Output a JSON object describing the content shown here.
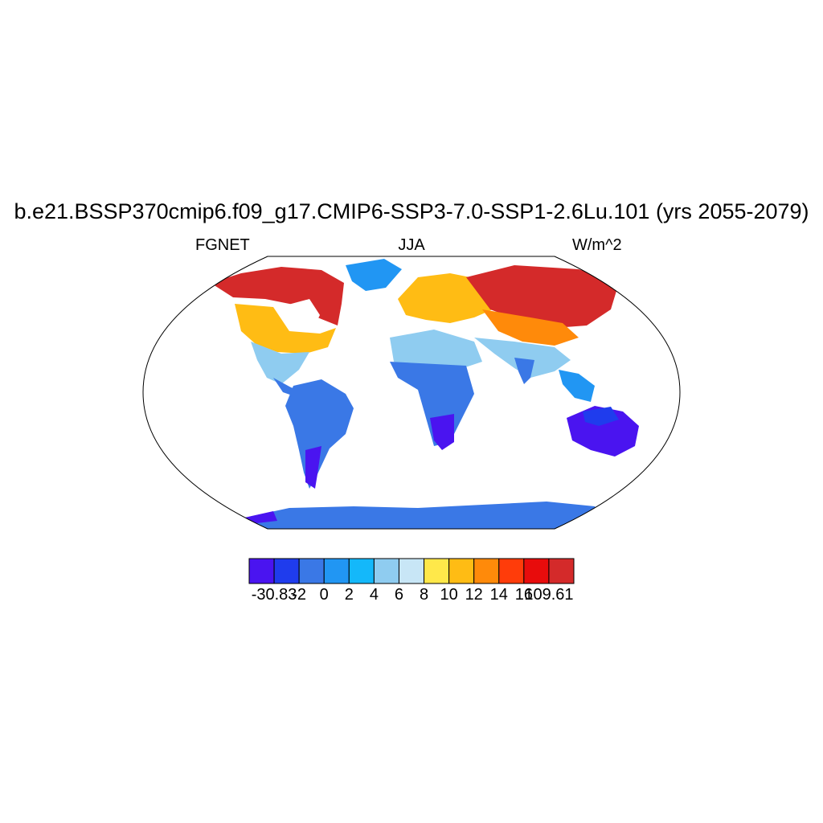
{
  "title": "b.e21.BSSP370cmip6.f09_g17.CMIP6-SSP3-7.0-SSP1-2.6Lu.101 (yrs 2055-2079)",
  "left_label": "FGNET",
  "center_label": "JJA",
  "right_label": "W/m^2",
  "colorbar": {
    "colors": [
      "#4a14f0",
      "#1f3ced",
      "#3a78e6",
      "#2196f3",
      "#14b8fa",
      "#8fccf0",
      "#c8e6f6",
      "#ffe84a",
      "#ffbc14",
      "#ff8a0a",
      "#ff3c0a",
      "#e80c0c",
      "#d42a2a"
    ],
    "labels": [
      "-30.83",
      "-2",
      "0",
      "2",
      "4",
      "6",
      "8",
      "10",
      "12",
      "14",
      "16",
      "109.61"
    ]
  },
  "map_colors": {
    "ocean": "#ffffff",
    "border": "#000000"
  }
}
